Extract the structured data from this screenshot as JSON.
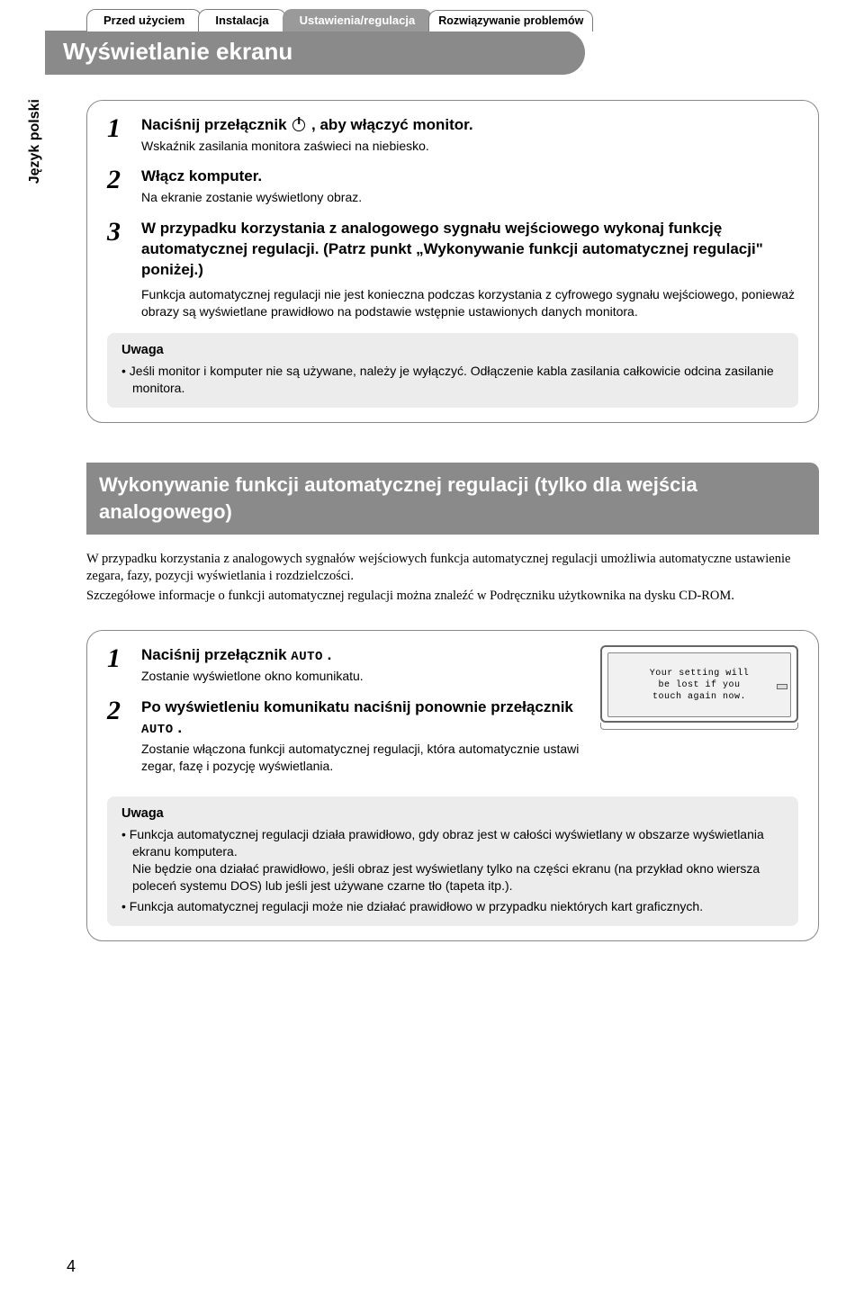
{
  "tabs": {
    "t1": "Przed użyciem",
    "t2": "Instalacja",
    "t3": "Ustawienia/regulacja",
    "t4": "Rozwiązywanie problemów"
  },
  "title": "Wyświetlanie ekranu",
  "sidelabel": "Język polski",
  "section1": {
    "step1": {
      "num": "1",
      "title_a": "Naciśnij przełącznik ",
      "title_b": " , aby włączyć monitor.",
      "sub": "Wskaźnik zasilania monitora zaświeci na niebiesko."
    },
    "step2": {
      "num": "2",
      "title": "Włącz komputer.",
      "sub": "Na ekranie zostanie wyświetlony obraz."
    },
    "step3": {
      "num": "3",
      "title": "W przypadku korzystania z analogowego sygnału wejściowego wykonaj funkcję automatycznej regulacji. (Patrz punkt „Wykonywanie funkcji automatycznej regulacji\" poniżej.)",
      "sub": "Funkcja automatycznej regulacji nie jest konieczna podczas korzystania z cyfrowego sygnału wejściowego, ponieważ obrazy są wyświetlane prawidłowo na podstawie wstępnie ustawionych danych monitora."
    },
    "uwaga_title": "Uwaga",
    "uwaga_text": "Jeśli monitor i komputer nie są używane, należy je wyłączyć. Odłączenie kabla zasilania całkowicie odcina zasilanie monitora."
  },
  "section2": {
    "header": "Wykonywanie funkcji automatycznej regulacji (tylko dla wejścia analogowego)",
    "intro1": "W przypadku korzystania z analogowych sygnałów wejściowych funkcja automatycznej regulacji umożliwia automatyczne ustawienie zegara, fazy, pozycji wyświetlania i rozdzielczości.",
    "intro2": "Szczegółowe informacje o funkcji automatycznej regulacji można znaleźć w Podręczniku użytkownika na dysku CD-ROM.",
    "step1": {
      "num": "1",
      "title_a": "Naciśnij przełącznik ",
      "auto": "AUTO",
      "title_b": " .",
      "sub": "Zostanie wyświetlone okno komunikatu."
    },
    "step2": {
      "num": "2",
      "title_a": "Po wyświetleniu komunikatu naciśnij ponownie przełącznik ",
      "auto": "AUTO",
      "title_b": " .",
      "sub": "Zostanie włączona funkcji automatycznej regulacji, która automatycznie ustawi zegar, fazę i pozycję wyświetlania."
    },
    "monitor_msg": "Your setting will\nbe lost if you\ntouch again now.",
    "uwaga_title": "Uwaga",
    "uwaga1": "Funkcja automatycznej regulacji działa prawidłowo, gdy obraz jest w całości wyświetlany w obszarze wyświetlania ekranu komputera.",
    "uwaga1_sub": "Nie będzie ona działać prawidłowo, jeśli obraz jest wyświetlany tylko na części ekranu (na przykład okno wiersza poleceń systemu DOS) lub jeśli jest używane czarne tło (tapeta itp.).",
    "uwaga2": "Funkcja automatycznej regulacji może nie działać prawidłowo w przypadku niektórych kart graficznych."
  },
  "pagenum": "4",
  "colors": {
    "tab_bg_active": "#9a9a9a",
    "titlebar_bg": "#8a8a8a",
    "box_border": "#888888",
    "uwaga_bg": "#ececec"
  }
}
